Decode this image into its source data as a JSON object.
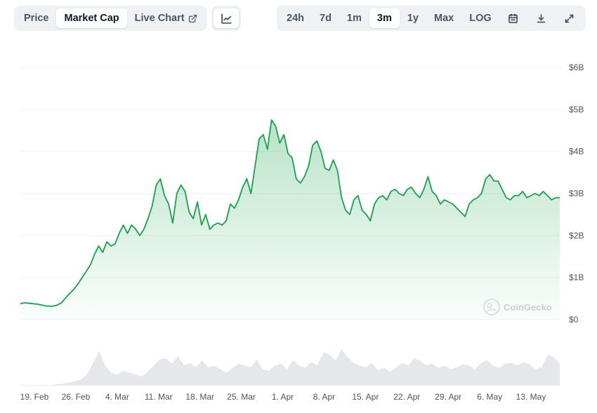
{
  "toolbar": {
    "metric_tabs": [
      {
        "label": "Price",
        "active": false
      },
      {
        "label": "Market Cap",
        "active": true
      },
      {
        "label": "Live Chart",
        "active": false
      }
    ],
    "chart_type_icon": "line-chart-icon",
    "range_tabs": [
      {
        "label": "24h",
        "active": false
      },
      {
        "label": "7d",
        "active": false
      },
      {
        "label": "1m",
        "active": false
      },
      {
        "label": "3m",
        "active": true
      },
      {
        "label": "1y",
        "active": false
      },
      {
        "label": "Max",
        "active": false
      },
      {
        "label": "LOG",
        "active": false
      }
    ],
    "icons": [
      "calendar-icon",
      "download-icon",
      "expand-icon"
    ]
  },
  "watermark": "CoinGecko",
  "colors": {
    "line": "#16a34a",
    "fill_top": "#16a34a",
    "volume": "#e5e7eb",
    "grid": "#eff2f5",
    "toolbar_bg": "#eff2f5"
  },
  "chart_data": {
    "type": "area",
    "title": "",
    "xlabel": "",
    "ylabel": "",
    "y_unit": "USD billions",
    "ylim": [
      0,
      6
    ],
    "y_ticks": [
      {
        "value": 6,
        "label": "$6B"
      },
      {
        "value": 5,
        "label": "$5B"
      },
      {
        "value": 4,
        "label": "$4B"
      },
      {
        "value": 3,
        "label": "$3B"
      },
      {
        "value": 2,
        "label": "$2B"
      },
      {
        "value": 1,
        "label": "$1B"
      },
      {
        "value": 0,
        "label": "$0"
      }
    ],
    "x_ticks": [
      "19. Feb",
      "26. Feb",
      "4. Mar",
      "11. Mar",
      "18. Mar",
      "25. Mar",
      "1. Apr",
      "8. Apr",
      "15. Apr",
      "22. Apr",
      "29. Apr",
      "6. May",
      "13. May"
    ],
    "grid": true,
    "legend": "none",
    "series": [
      {
        "values": [
          0.38,
          0.4,
          0.39,
          0.38,
          0.37,
          0.35,
          0.33,
          0.32,
          0.32,
          0.35,
          0.4,
          0.52,
          0.62,
          0.72,
          0.85,
          1.0,
          1.15,
          1.3,
          1.55,
          1.75,
          1.6,
          1.85,
          1.75,
          1.8,
          2.05,
          2.25,
          2.05,
          2.25,
          2.15,
          2.0,
          2.15,
          2.4,
          2.7,
          3.2,
          3.35,
          2.95,
          2.75,
          2.3,
          3.0,
          3.2,
          3.05,
          2.55,
          2.4,
          2.8,
          2.25,
          2.5,
          2.15,
          2.25,
          2.3,
          2.25,
          2.35,
          2.75,
          2.65,
          2.85,
          3.15,
          3.35,
          3.0,
          3.65,
          4.3,
          4.4,
          4.05,
          4.75,
          4.6,
          4.2,
          4.4,
          3.95,
          3.85,
          3.35,
          3.25,
          3.4,
          3.65,
          4.15,
          4.25,
          4.0,
          3.6,
          3.55,
          3.8,
          3.55,
          2.9,
          2.6,
          2.5,
          2.85,
          2.95,
          2.6,
          2.5,
          2.35,
          2.75,
          2.9,
          2.95,
          2.85,
          3.05,
          3.1,
          3.0,
          2.95,
          3.1,
          3.15,
          3.0,
          2.9,
          3.1,
          3.4,
          3.05,
          2.95,
          2.75,
          2.85,
          2.8,
          2.75,
          2.65,
          2.55,
          2.45,
          2.75,
          2.85,
          2.9,
          3.0,
          3.35,
          3.45,
          3.3,
          3.3,
          3.1,
          2.9,
          2.85,
          2.95,
          2.95,
          3.05,
          2.9,
          2.95,
          3.0,
          2.95,
          3.05,
          2.95,
          2.85,
          2.9,
          2.9
        ]
      }
    ],
    "volume_values": [
      0.01,
      0.01,
      0.01,
      0.02,
      0.02,
      0.02,
      0.03,
      0.05,
      0.08,
      0.12,
      0.17,
      0.3,
      0.62,
      0.95,
      0.55,
      0.35,
      0.3,
      0.42,
      0.35,
      0.3,
      0.25,
      0.38,
      0.55,
      0.72,
      0.75,
      0.6,
      0.8,
      0.55,
      0.62,
      0.5,
      0.68,
      0.5,
      0.55,
      0.45,
      0.35,
      0.48,
      0.6,
      0.55,
      0.5,
      0.72,
      0.45,
      0.4,
      0.55,
      0.6,
      0.45,
      0.7,
      0.55,
      0.48,
      0.65,
      0.55,
      0.92,
      0.85,
      0.68,
      1.0,
      0.78,
      0.62,
      0.55,
      0.5,
      0.62,
      0.42,
      0.48,
      0.38,
      0.5,
      0.62,
      0.55,
      0.75,
      0.68,
      0.55,
      0.6,
      0.48,
      0.55,
      0.45,
      0.5,
      0.58,
      0.55,
      0.45,
      0.62,
      0.7,
      0.55,
      0.48,
      0.6,
      0.62,
      0.55,
      0.65,
      0.58,
      0.45,
      0.5,
      0.85,
      0.78,
      0.6
    ],
    "volume_ylim": [
      0,
      1
    ]
  }
}
